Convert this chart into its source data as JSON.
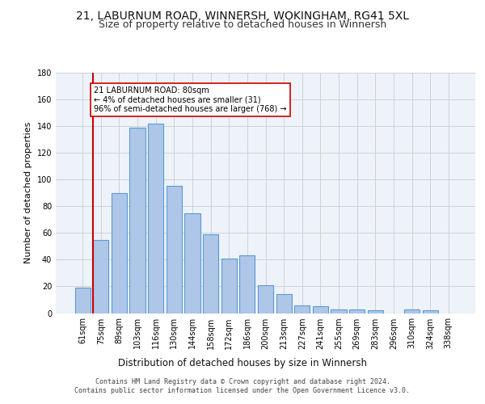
{
  "title_line1": "21, LABURNUM ROAD, WINNERSH, WOKINGHAM, RG41 5XL",
  "title_line2": "Size of property relative to detached houses in Winnersh",
  "xlabel": "Distribution of detached houses by size in Winnersh",
  "ylabel": "Number of detached properties",
  "categories": [
    "61sqm",
    "75sqm",
    "89sqm",
    "103sqm",
    "116sqm",
    "130sqm",
    "144sqm",
    "158sqm",
    "172sqm",
    "186sqm",
    "200sqm",
    "213sqm",
    "227sqm",
    "241sqm",
    "255sqm",
    "269sqm",
    "283sqm",
    "296sqm",
    "310sqm",
    "324sqm",
    "338sqm"
  ],
  "values": [
    19,
    55,
    90,
    139,
    142,
    95,
    75,
    59,
    41,
    43,
    21,
    14,
    6,
    5,
    3,
    3,
    2,
    0,
    3,
    2,
    0
  ],
  "bar_color": "#aec6e8",
  "bar_edge_color": "#5b9bd5",
  "bar_edge_width": 0.8,
  "vline_color": "#cc0000",
  "annotation_box_text": "21 LABURNUM ROAD: 80sqm\n← 4% of detached houses are smaller (31)\n96% of semi-detached houses are larger (768) →",
  "annotation_box_color": "#cc0000",
  "annotation_box_facecolor": "white",
  "ylim": [
    0,
    180
  ],
  "yticks": [
    0,
    20,
    40,
    60,
    80,
    100,
    120,
    140,
    160,
    180
  ],
  "grid_color": "#cccccc",
  "bg_color": "#eef2f9",
  "footer_line1": "Contains HM Land Registry data © Crown copyright and database right 2024.",
  "footer_line2": "Contains public sector information licensed under the Open Government Licence v3.0.",
  "title_fontsize": 10,
  "subtitle_fontsize": 9,
  "tick_fontsize": 7,
  "ylabel_fontsize": 8,
  "xlabel_fontsize": 8.5,
  "footer_fontsize": 6
}
